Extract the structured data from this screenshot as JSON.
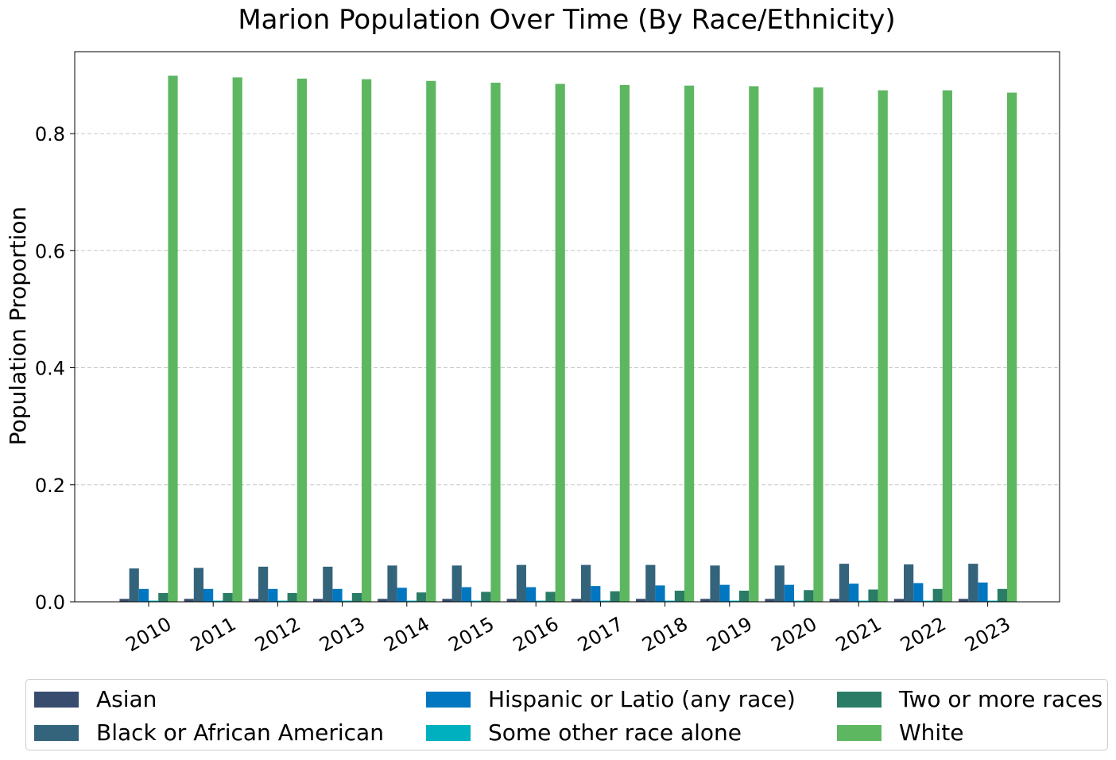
{
  "chart_data": {
    "type": "bar",
    "title": "Marion Population Over Time (By Race/Ethnicity)",
    "xlabel": "",
    "ylabel": "Population Proportion",
    "ylim": [
      0,
      0.94
    ],
    "yticks": [
      "0.0",
      "0.2",
      "0.4",
      "0.6",
      "0.8"
    ],
    "grid": "y dashed",
    "legend_position": "bottom-center",
    "categories": [
      "2010",
      "2011",
      "2012",
      "2013",
      "2014",
      "2015",
      "2016",
      "2017",
      "2018",
      "2019",
      "2020",
      "2021",
      "2022",
      "2023"
    ],
    "series": [
      {
        "name": "Asian",
        "color": "#374c6e",
        "values": [
          0.005,
          0.005,
          0.005,
          0.005,
          0.005,
          0.005,
          0.005,
          0.005,
          0.005,
          0.005,
          0.005,
          0.005,
          0.005,
          0.005
        ]
      },
      {
        "name": "Black or African American",
        "color": "#34637c",
        "values": [
          0.057,
          0.058,
          0.06,
          0.06,
          0.062,
          0.062,
          0.063,
          0.063,
          0.063,
          0.062,
          0.062,
          0.065,
          0.064,
          0.065
        ]
      },
      {
        "name": "Hispanic or Latio (any race)",
        "color": "#0277c1",
        "values": [
          0.022,
          0.022,
          0.022,
          0.022,
          0.024,
          0.025,
          0.025,
          0.027,
          0.028,
          0.029,
          0.029,
          0.031,
          0.032,
          0.033
        ]
      },
      {
        "name": "Some other race alone",
        "color": "#00b0be",
        "values": [
          0.002,
          0.002,
          0.002,
          0.002,
          0.002,
          0.002,
          0.002,
          0.002,
          0.002,
          0.002,
          0.002,
          0.002,
          0.002,
          0.002
        ]
      },
      {
        "name": "Two or more races",
        "color": "#2a7c66",
        "values": [
          0.015,
          0.015,
          0.015,
          0.015,
          0.016,
          0.017,
          0.017,
          0.018,
          0.019,
          0.019,
          0.02,
          0.021,
          0.022,
          0.022
        ]
      },
      {
        "name": "White",
        "color": "#5db761",
        "values": [
          0.899,
          0.896,
          0.894,
          0.893,
          0.89,
          0.887,
          0.885,
          0.883,
          0.882,
          0.881,
          0.879,
          0.874,
          0.874,
          0.87
        ]
      }
    ]
  }
}
